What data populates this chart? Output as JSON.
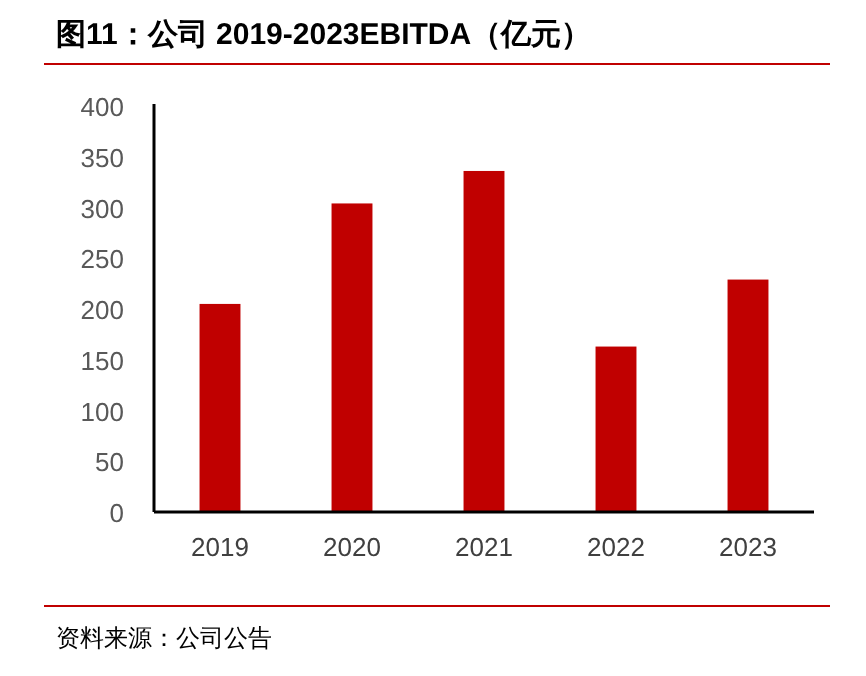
{
  "chart_data": {
    "type": "bar",
    "title": "图11：公司 2019-2023EBITDA（亿元）",
    "categories": [
      "2019",
      "2020",
      "2021",
      "2022",
      "2023"
    ],
    "values": [
      205,
      304,
      336,
      163,
      229
    ],
    "color": "#c00000",
    "ylim": [
      0,
      400
    ],
    "yticks": [
      0,
      50,
      100,
      150,
      200,
      250,
      300,
      350,
      400
    ],
    "annotations": [
      "资料来源：公司公告"
    ]
  }
}
